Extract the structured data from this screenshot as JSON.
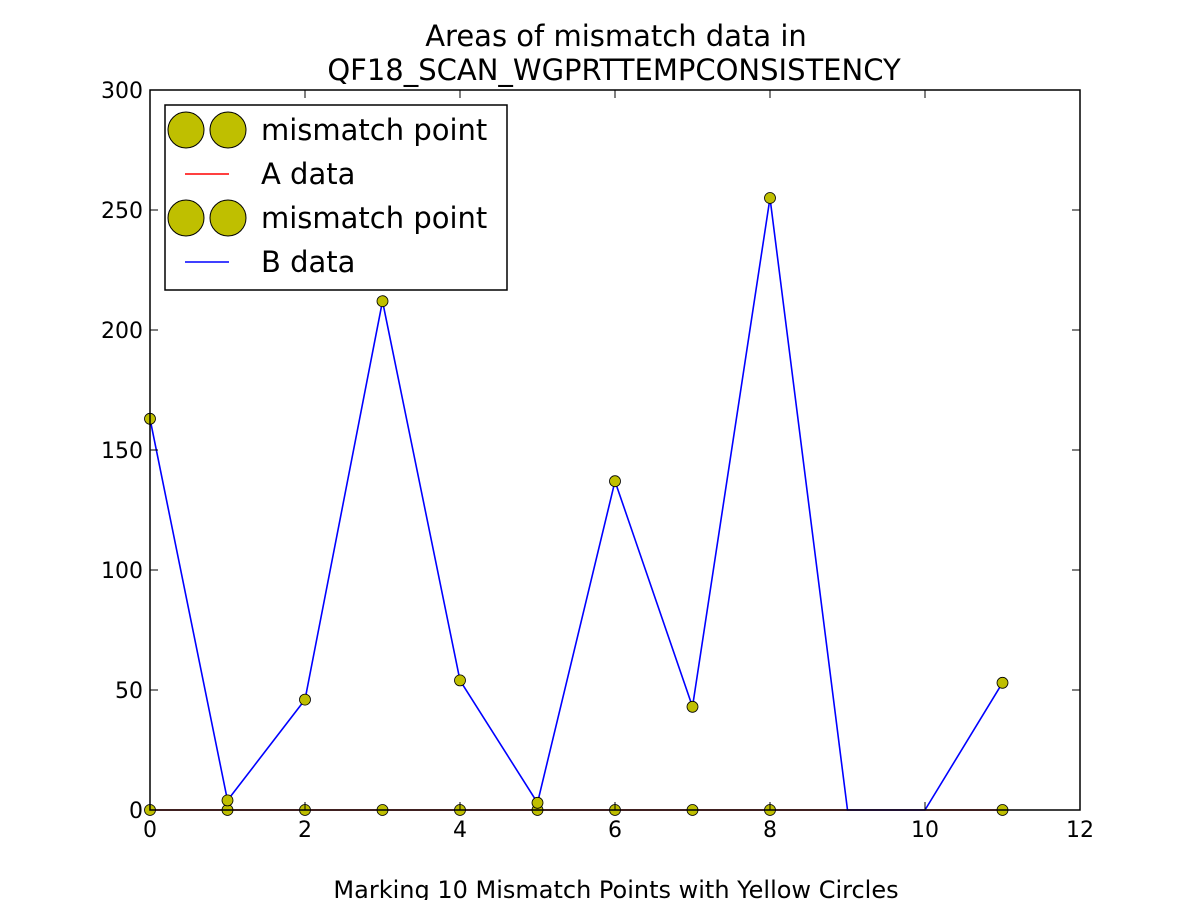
{
  "chart_data": {
    "type": "line",
    "title": [
      "Areas of mismatch data in",
      "QF18_SCAN_WGPRTTEMPCONSISTENCY"
    ],
    "xlabel": "Marking 10 Mismatch Points with Yellow Circles",
    "ylabel": "",
    "xlim": [
      0,
      12
    ],
    "ylim": [
      0,
      300
    ],
    "xticks": [
      0,
      2,
      4,
      6,
      8,
      10,
      12
    ],
    "yticks": [
      0,
      50,
      100,
      150,
      200,
      250,
      300
    ],
    "grid": false,
    "legend_position": "top-left",
    "series": [
      {
        "name": "A data",
        "color": "#ff0000",
        "x": [
          0,
          1,
          2,
          3,
          4,
          5,
          6,
          7,
          8,
          9,
          10,
          11
        ],
        "values": [
          0,
          0,
          0,
          0,
          0,
          0,
          0,
          0,
          0,
          0,
          0,
          0
        ]
      },
      {
        "name": "B data",
        "color": "#0000ff",
        "x": [
          0,
          1,
          2,
          3,
          4,
          5,
          6,
          7,
          8,
          9,
          10,
          11
        ],
        "values": [
          163,
          4,
          46,
          212,
          54,
          3,
          137,
          43,
          255,
          0,
          0,
          53
        ]
      }
    ],
    "mismatch_points": [
      {
        "name": "mismatch point",
        "color": "#bfbf00",
        "x": [
          0,
          1,
          2,
          3,
          4,
          5,
          6,
          7,
          8,
          11
        ],
        "y": [
          0,
          0,
          0,
          0,
          0,
          0,
          0,
          0,
          0,
          0
        ]
      },
      {
        "name": "mismatch point",
        "color": "#bfbf00",
        "x": [
          0,
          1,
          2,
          3,
          4,
          5,
          6,
          7,
          8,
          11
        ],
        "y": [
          163,
          4,
          46,
          212,
          54,
          3,
          137,
          43,
          255,
          53
        ]
      }
    ],
    "legend": [
      "mismatch point",
      "A data",
      "mismatch point",
      "B data"
    ]
  }
}
